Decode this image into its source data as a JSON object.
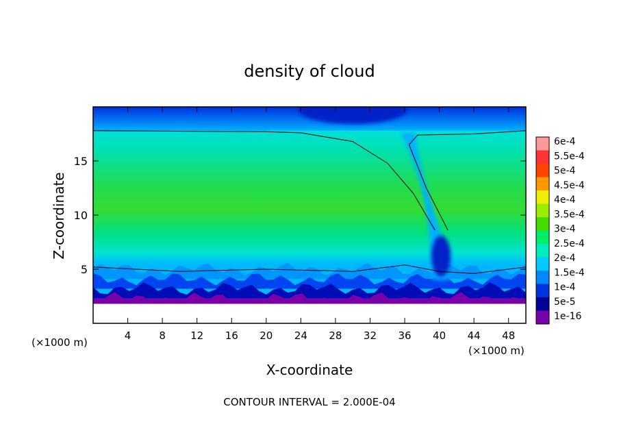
{
  "chart_data": {
    "type": "heatmap",
    "title": "density of cloud",
    "xlabel": "X-coordinate",
    "ylabel": "Z-coordinate",
    "x_unit_left": "(×1000 m)",
    "x_unit_right": "(×1000 m)",
    "footer": "CONTOUR INTERVAL = 2.000E-04",
    "xlim": [
      0,
      50
    ],
    "ylim": [
      0,
      20
    ],
    "x_ticks": [
      4,
      8,
      12,
      16,
      20,
      24,
      28,
      32,
      36,
      40,
      44,
      48
    ],
    "y_ticks": [
      5,
      10,
      15
    ],
    "colorbar": {
      "labels": [
        "6e-4",
        "5.5e-4",
        "5e-4",
        "4.5e-4",
        "4e-4",
        "3.5e-4",
        "3e-4",
        "2.5e-4",
        "2e-4",
        "1.5e-4",
        "1e-4",
        "5e-5",
        "1e-16"
      ],
      "colors": [
        "#ff9999",
        "#ff3333",
        "#ff4400",
        "#ff9900",
        "#eeee00",
        "#99ee00",
        "#44dd00",
        "#00ee66",
        "#00eebb",
        "#00ccff",
        "#0088ff",
        "#0033dd",
        "#000099",
        "#7700aa"
      ]
    },
    "field": {
      "layers": [
        {
          "level": "1e-16",
          "color": "#7a00a8",
          "x": [
            0,
            50
          ],
          "y": [
            1.8,
            2.3
          ]
        },
        {
          "level": "5e-5",
          "color": "#000cb5",
          "x": [
            0,
            50
          ],
          "y": [
            2.3,
            3.2
          ]
        },
        {
          "level": "1e-4",
          "color": "#0045f0",
          "x": [
            0,
            50
          ],
          "y": [
            3.2,
            4.1
          ]
        },
        {
          "level": "1.5e-4",
          "color": "#0095ff",
          "x": [
            0,
            50
          ],
          "y": [
            4.1,
            5.0
          ]
        },
        {
          "level": "2e-4",
          "color": "#00e3e3",
          "x": [
            0,
            50
          ],
          "y": [
            5.0,
            17.8
          ]
        },
        {
          "level": "2.5e-4",
          "color": "#00e08a",
          "x": [
            0,
            50
          ],
          "y": [
            8.0,
            14.5
          ]
        },
        {
          "level": "3e-4",
          "color": "#2fd92f",
          "x": [
            0,
            50
          ],
          "y": [
            8.5,
            10.5
          ]
        }
      ],
      "contours": [
        {
          "level": "2e-4",
          "description": "lower cloud boundary",
          "x": [
            0,
            10,
            20,
            30,
            36,
            40,
            44,
            50
          ],
          "y": [
            5.2,
            4.8,
            5.0,
            4.8,
            5.4,
            4.8,
            4.6,
            5.2
          ]
        },
        {
          "level": "2e-4",
          "description": "upper cloud boundary",
          "x": [
            0,
            20,
            24,
            30,
            34,
            37,
            39.5
          ],
          "y": [
            17.8,
            17.7,
            17.6,
            16.8,
            14.8,
            12.0,
            8.6
          ]
        },
        {
          "level": "2e-4",
          "description": "upper cloud boundary right",
          "x": [
            41.0,
            38.5,
            36.5,
            37.5,
            44,
            50
          ],
          "y": [
            8.6,
            12.5,
            16.5,
            17.4,
            17.5,
            17.8
          ]
        }
      ]
    }
  }
}
